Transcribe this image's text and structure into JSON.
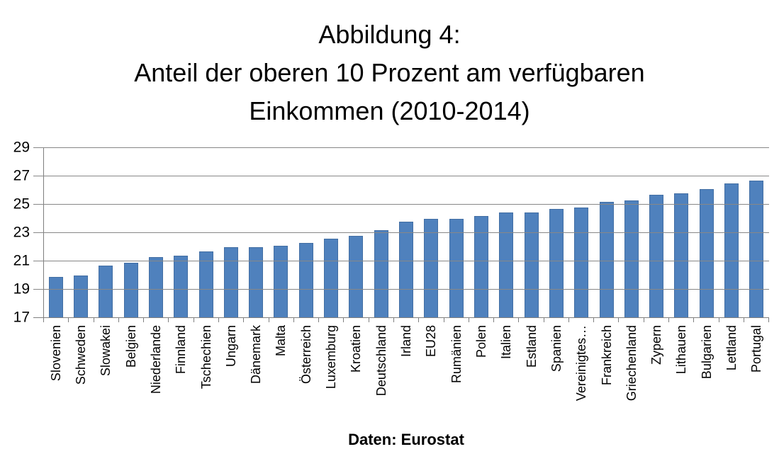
{
  "figure": {
    "title_lines": [
      "Abbildung 4:",
      "Anteil der oberen 10 Prozent am verfügbaren",
      "Einkommen (2010-2014)"
    ],
    "source_note": "Daten: Eurostat"
  },
  "chart_data": {
    "type": "bar",
    "title": "Abbildung 4: Anteil der oberen 10 Prozent am verfügbaren Einkommen (2010-2014)",
    "categories": [
      "Slovenien",
      "Schweden",
      "Slowakei",
      "Belgien",
      "Niederlande",
      "Finnland",
      "Tschechien",
      "Ungarn",
      "Dänemark",
      "Malta",
      "Österreich",
      "Luxemburg",
      "Kroatien",
      "Deutschland",
      "Irland",
      "EU28",
      "Rumänien",
      "Polen",
      "Italien",
      "Estland",
      "Spanien",
      "Vereinigtes…",
      "Frankreich",
      "Griechenland",
      "Zypern",
      "Lithauen",
      "Bulgarien",
      "Lettland",
      "Portugal"
    ],
    "values": [
      19.9,
      20.0,
      20.7,
      20.9,
      21.3,
      21.4,
      21.7,
      22.0,
      22.0,
      22.1,
      22.3,
      22.6,
      22.8,
      23.2,
      23.8,
      24.0,
      24.0,
      24.2,
      24.45,
      24.45,
      24.7,
      24.8,
      25.2,
      25.3,
      25.7,
      25.8,
      26.1,
      26.5,
      26.7
    ],
    "xlabel": "",
    "ylabel": "",
    "ylim": [
      17,
      29
    ],
    "yticks": [
      17,
      19,
      21,
      23,
      25,
      27,
      29
    ],
    "grid": true,
    "legend": false,
    "bar_color": "#4F81BD",
    "axis_color": "#7F7F7F",
    "gridline_color": "#878787",
    "source_note": "Daten: Eurostat"
  }
}
